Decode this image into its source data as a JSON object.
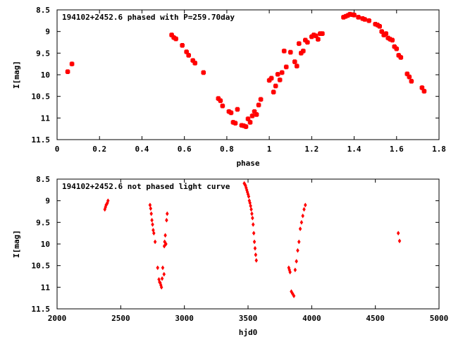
{
  "chart_data": [
    {
      "type": "scatter",
      "title": "194102+2452.6 phased with P=259.70day",
      "xlabel": "phase",
      "ylabel": "I[mag]",
      "xlim": [
        0,
        1.8
      ],
      "ylim": [
        8.5,
        11.5
      ],
      "y_inverted": true,
      "x_ticks": [
        0,
        0.2,
        0.4,
        0.6,
        0.8,
        1,
        1.2,
        1.4,
        1.6,
        1.8
      ],
      "x_tick_labels": [
        "0",
        "0.2",
        "0.4",
        "0.6",
        "0.8",
        "1",
        "1.2",
        "1.4",
        "1.6",
        "1.8"
      ],
      "y_ticks": [
        8.5,
        9,
        9.5,
        10,
        10.5,
        11,
        11.5
      ],
      "y_tick_labels": [
        "8.5",
        "9",
        "9.5",
        "10",
        "10.5",
        "11",
        "11.5"
      ],
      "marker": "plus-square",
      "color": "#ff0000",
      "series": [
        {
          "x": [
            0.05,
            0.07,
            0.54,
            0.55,
            0.56,
            0.59,
            0.61,
            0.62,
            0.64,
            0.65,
            0.69,
            0.76,
            0.77,
            0.78,
            0.81,
            0.82,
            0.83,
            0.84,
            0.85,
            0.87,
            0.88,
            0.89,
            0.9,
            0.91,
            0.92,
            0.93,
            0.94,
            0.95,
            0.96,
            1.0,
            1.01,
            1.02,
            1.03,
            1.04,
            1.05,
            1.06,
            1.07,
            1.08,
            1.1,
            1.12,
            1.13,
            1.14,
            1.15,
            1.16,
            1.17,
            1.18,
            1.2,
            1.21,
            1.22,
            1.23,
            1.24,
            1.25,
            1.35,
            1.36,
            1.37,
            1.38,
            1.39,
            1.4,
            1.42,
            1.44,
            1.45,
            1.47,
            1.5,
            1.51,
            1.52,
            1.53,
            1.54,
            1.55,
            1.56,
            1.57,
            1.58,
            1.59,
            1.6,
            1.61,
            1.62,
            1.65,
            1.66,
            1.67,
            1.72,
            1.73
          ],
          "y": [
            9.93,
            9.75,
            9.08,
            9.14,
            9.17,
            9.32,
            9.47,
            9.55,
            9.67,
            9.73,
            9.95,
            10.55,
            10.6,
            10.72,
            10.85,
            10.88,
            11.1,
            11.12,
            10.8,
            11.17,
            11.18,
            11.2,
            11.02,
            11.1,
            10.95,
            10.85,
            10.92,
            10.7,
            10.57,
            10.13,
            10.08,
            10.4,
            10.26,
            9.99,
            10.12,
            9.95,
            9.45,
            9.82,
            9.48,
            9.7,
            9.8,
            9.28,
            9.5,
            9.45,
            9.2,
            9.25,
            9.12,
            9.08,
            9.1,
            9.18,
            9.05,
            9.05,
            8.67,
            8.65,
            8.63,
            8.6,
            8.61,
            8.62,
            8.67,
            8.7,
            8.72,
            8.75,
            8.83,
            8.85,
            8.88,
            9.0,
            9.08,
            9.05,
            9.15,
            9.18,
            9.2,
            9.35,
            9.4,
            9.55,
            9.6,
            9.98,
            10.05,
            10.15,
            10.3,
            10.38
          ]
        }
      ]
    },
    {
      "type": "scatter",
      "title": "194102+2452.6 not phased light curve",
      "xlabel": "hjd0",
      "ylabel": "I[mag]",
      "xlim": [
        2000,
        5000
      ],
      "ylim": [
        8.5,
        11.5
      ],
      "y_inverted": true,
      "x_ticks": [
        2000,
        2500,
        3000,
        3500,
        4000,
        4500,
        5000
      ],
      "x_tick_labels": [
        "2000",
        "2500",
        "3000",
        "3500",
        "4000",
        "4500",
        "5000"
      ],
      "y_ticks": [
        8.5,
        9,
        9.5,
        10,
        10.5,
        11,
        11.5
      ],
      "y_tick_labels": [
        "8.5",
        "9",
        "9.5",
        "10",
        "10.5",
        "11",
        "11.5"
      ],
      "marker": "diamond",
      "color": "#ff0000",
      "series": [
        {
          "x": [
            2375,
            2380,
            2385,
            2390,
            2395,
            2400,
            2730,
            2735,
            2740,
            2745,
            2750,
            2755,
            2760,
            2770,
            2790,
            2800,
            2805,
            2810,
            2815,
            2820,
            2825,
            2830,
            2840,
            2842,
            2845,
            2850,
            2855,
            2860,
            2865,
            3470,
            3475,
            3480,
            3485,
            3490,
            3495,
            3500,
            3505,
            3510,
            3515,
            3520,
            3525,
            3530,
            3535,
            3540,
            3545,
            3550,
            3555,
            3560,
            3565,
            3820,
            3825,
            3830,
            3840,
            3850,
            3860,
            3870,
            3880,
            3890,
            3900,
            3910,
            3920,
            3930,
            3940,
            3950,
            4680,
            4690
          ],
          "y": [
            9.2,
            9.15,
            9.1,
            9.08,
            9.05,
            9.0,
            9.1,
            9.18,
            9.3,
            9.45,
            9.55,
            9.68,
            9.75,
            9.95,
            10.55,
            10.82,
            10.88,
            10.9,
            10.95,
            11.0,
            10.8,
            10.55,
            10.7,
            10.05,
            9.95,
            9.8,
            10.0,
            9.45,
            9.3,
            8.6,
            8.62,
            8.65,
            8.7,
            8.75,
            8.8,
            8.85,
            8.9,
            9.0,
            9.05,
            9.12,
            9.2,
            9.3,
            9.4,
            9.55,
            9.75,
            9.95,
            10.1,
            10.25,
            10.38,
            10.55,
            10.6,
            10.65,
            11.1,
            11.15,
            11.2,
            10.6,
            10.4,
            10.15,
            9.95,
            9.65,
            9.5,
            9.35,
            9.2,
            9.1,
            9.75,
            9.93
          ]
        }
      ]
    }
  ]
}
